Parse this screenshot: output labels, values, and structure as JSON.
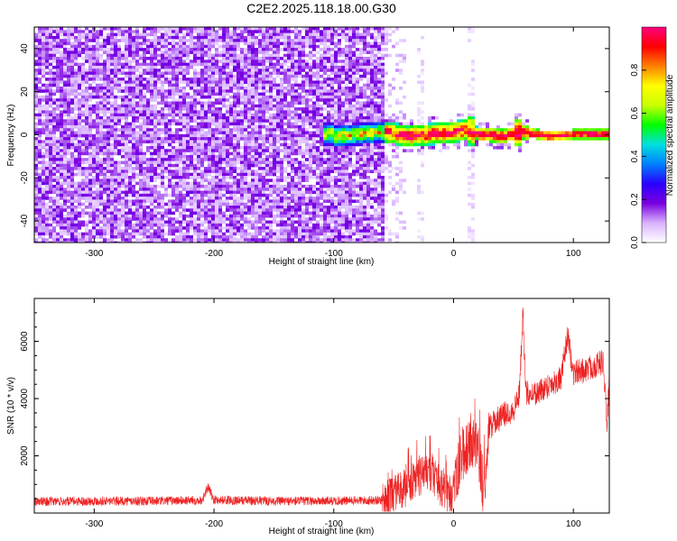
{
  "title": "C2E2.2025.118.18.00.G30",
  "chart_data": [
    {
      "type": "heatmap",
      "xlabel": "Height of straight line (km)",
      "ylabel": "Frequency (Hz)",
      "xlim": [
        -350,
        130
      ],
      "ylim": [
        -50,
        50
      ],
      "xticks": [
        -300,
        -200,
        -100,
        0,
        100
      ],
      "yticks": [
        -40,
        -20,
        0,
        20,
        40
      ],
      "colorbar": {
        "label": "Normalized spectral amplitude",
        "range": [
          0,
          1
        ],
        "ticks": [
          0.0,
          0.2,
          0.4,
          0.6,
          0.8
        ],
        "tick_labels": [
          "0.0",
          "0.2",
          "0.4",
          "0.6",
          "0.8"
        ],
        "colormap": [
          "#ffffff",
          "#d9b3ff",
          "#7b00e0",
          "#2a00ff",
          "#0080ff",
          "#00e0e0",
          "#00ff00",
          "#c8ff00",
          "#ffff00",
          "#ff8000",
          "#ff0000",
          "#ff0080"
        ]
      },
      "description_points": {
        "noise_region_x": [
          -350,
          -60
        ],
        "signal_band_center_hz": [
          [
            -100,
            0
          ],
          [
            -60,
            2
          ],
          [
            -40,
            0
          ],
          [
            -20,
            1
          ],
          [
            0,
            2
          ],
          [
            10,
            3
          ],
          [
            20,
            1
          ],
          [
            40,
            0
          ],
          [
            55,
            2
          ],
          [
            80,
            0
          ],
          [
            100,
            1
          ],
          [
            130,
            1
          ]
        ]
      }
    },
    {
      "type": "line",
      "xlabel": "Height of straight line (km)",
      "ylabel": "SNR (10 * v/v)",
      "xlim": [
        -350,
        130
      ],
      "ylim": [
        0,
        7500
      ],
      "xticks": [
        -300,
        -200,
        -100,
        0,
        100
      ],
      "yticks": [
        2000,
        4000,
        6000
      ],
      "line_color": "#ee2222",
      "series": [
        {
          "x": [
            -350,
            -300,
            -250,
            -210,
            -205,
            -200,
            -150,
            -100,
            -60,
            -50,
            -40,
            -30,
            -20,
            -10,
            0,
            5,
            10,
            20,
            25,
            30,
            40,
            50,
            55,
            58,
            60,
            70,
            80,
            90,
            95,
            100,
            110,
            120,
            125,
            128,
            130
          ],
          "y": [
            400,
            420,
            420,
            450,
            900,
            460,
            420,
            420,
            450,
            600,
            900,
            1200,
            1500,
            800,
            600,
            1800,
            2200,
            2500,
            600,
            3000,
            3400,
            3600,
            4200,
            7200,
            4200,
            4200,
            4500,
            4700,
            6200,
            4900,
            5000,
            5200,
            5300,
            3000,
            4800
          ]
        }
      ]
    }
  ]
}
